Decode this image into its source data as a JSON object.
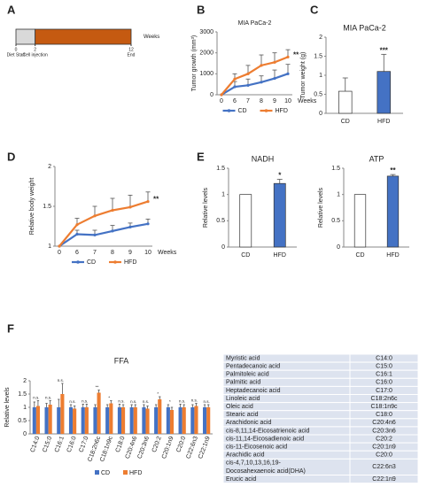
{
  "panel_labels": [
    "A",
    "B",
    "C",
    "D",
    "E",
    "F"
  ],
  "chart_data": [
    {
      "type": "timeline",
      "xlim": [
        0,
        12
      ],
      "xticks": [
        0,
        2,
        12
      ],
      "tick_notes": [
        "Diet Start",
        "Cell injection",
        "End"
      ],
      "xlabel": "Weeks",
      "segments": [
        {
          "start": 0,
          "end": 2,
          "color": "#d9d9d9"
        },
        {
          "start": 2,
          "end": 12,
          "color": "#c55a11"
        }
      ]
    },
    {
      "type": "line",
      "title": "MIA PaCa-2",
      "ylabel": "Tumor growth (mm³)",
      "xlabel": "Weeks",
      "categories": [
        "0",
        "6",
        "7",
        "8",
        "9",
        "10"
      ],
      "ylim": [
        0,
        3000
      ],
      "yticks": [
        0,
        1000,
        2000,
        3000
      ],
      "series": [
        {
          "name": "CD",
          "color": "#4472c4",
          "values": [
            0,
            380,
            450,
            600,
            780,
            1000
          ],
          "errors": [
            0,
            250,
            300,
            300,
            400,
            450
          ]
        },
        {
          "name": "HFD",
          "color": "#ed7d31",
          "values": [
            0,
            750,
            1000,
            1400,
            1550,
            1800
          ],
          "errors": [
            0,
            250,
            400,
            500,
            450,
            350
          ]
        }
      ],
      "annotations": [
        {
          "series": "HFD",
          "text": "**"
        }
      ]
    },
    {
      "type": "bar",
      "title": "MIA PaCa-2",
      "ylabel": "Tumor weight (g)",
      "categories": [
        "CD",
        "HFD"
      ],
      "values": [
        0.58,
        1.1
      ],
      "errors": [
        0.35,
        0.45
      ],
      "colors": [
        "#ffffff",
        "#4472c4"
      ],
      "ylim": [
        0,
        2
      ],
      "yticks": [
        0,
        0.5,
        1,
        1.5,
        2
      ],
      "annotations": [
        {
          "category": "HFD",
          "text": "***"
        }
      ]
    },
    {
      "type": "line",
      "ylabel": "Relative body weight",
      "xlabel": "Weeks",
      "categories": [
        "0",
        "6",
        "7",
        "8",
        "9",
        "10"
      ],
      "ylim": [
        1,
        2
      ],
      "yticks": [
        1,
        1.5,
        2
      ],
      "series": [
        {
          "name": "CD",
          "color": "#4472c4",
          "values": [
            1,
            1.15,
            1.14,
            1.19,
            1.24,
            1.28
          ],
          "errors": [
            0,
            0.05,
            0.06,
            0.07,
            0.05,
            0.06
          ]
        },
        {
          "name": "HFD",
          "color": "#ed7d31",
          "values": [
            1,
            1.27,
            1.38,
            1.45,
            1.49,
            1.56
          ],
          "errors": [
            0,
            0.08,
            0.12,
            0.15,
            0.15,
            0.12
          ]
        }
      ],
      "annotations": [
        {
          "series": "HFD",
          "text": "**"
        }
      ]
    },
    {
      "type": "bar",
      "title": "NADH",
      "ylabel": "Relative levels",
      "categories": [
        "CD",
        "HFD"
      ],
      "values": [
        1,
        1.21
      ],
      "errors": [
        0,
        0.08
      ],
      "colors": [
        "#ffffff",
        "#4472c4"
      ],
      "ylim": [
        0,
        1.5
      ],
      "yticks": [
        0,
        0.5,
        1,
        1.5
      ],
      "annotations": [
        {
          "category": "HFD",
          "text": "*"
        }
      ]
    },
    {
      "type": "bar",
      "title": "ATP",
      "ylabel": "Relative levels",
      "categories": [
        "CD",
        "HFD"
      ],
      "values": [
        1,
        1.35
      ],
      "errors": [
        0,
        0.03
      ],
      "colors": [
        "#ffffff",
        "#4472c4"
      ],
      "ylim": [
        0,
        1.5
      ],
      "yticks": [
        0,
        0.5,
        1,
        1.5
      ],
      "annotations": [
        {
          "category": "HFD",
          "text": "**"
        }
      ]
    },
    {
      "type": "grouped_bar",
      "title": "FFA",
      "ylabel": "Relative levels",
      "categories": [
        "C14:0",
        "C15:0",
        "C16:1",
        "C16:0",
        "C17:0",
        "C18:2n6c",
        "C18:1n9c",
        "C18:0",
        "C20:4n6",
        "C20:3n6",
        "C20:2",
        "C20:1n9",
        "C20:0",
        "C22:6n3",
        "C22:1n9"
      ],
      "ylim": [
        0,
        2
      ],
      "yticks": [
        0,
        0.5,
        1,
        1.5,
        2
      ],
      "series": [
        {
          "name": "CD",
          "color": "#4472c4",
          "values": [
            1,
            1,
            1,
            1,
            1,
            1,
            1,
            1,
            1,
            1,
            1,
            1,
            1,
            1,
            1
          ],
          "errors": [
            0.2,
            0.15,
            0.3,
            0.1,
            0.12,
            0.1,
            0.1,
            0.12,
            0.1,
            0.1,
            0.1,
            0.1,
            0.12,
            0.1,
            0.1
          ]
        },
        {
          "name": "HFD",
          "color": "#ed7d31",
          "values": [
            1.05,
            1.1,
            1.5,
            0.95,
            1.0,
            1.55,
            1.15,
            1.0,
            1.0,
            0.95,
            1.3,
            0.9,
            1.0,
            1.05,
            1.0
          ],
          "errors": [
            0.2,
            0.15,
            0.4,
            0.1,
            0.12,
            0.1,
            0.1,
            0.1,
            0.1,
            0.1,
            0.1,
            0.1,
            0.1,
            0.1,
            0.1
          ]
        }
      ],
      "annotations": [
        "n.s.",
        "n.s.",
        "n.s.",
        "n.s.",
        "n.s.",
        "**",
        "*",
        "n.s.",
        "n.s.",
        "n.s.",
        "*",
        "*",
        "n.s.",
        "n.s.",
        "n.s."
      ]
    }
  ],
  "table": {
    "rows": [
      [
        "Myristic acid",
        "C14:0"
      ],
      [
        "Pentadecanoic acid",
        "C15:0"
      ],
      [
        "Palmitoleic acid",
        "C16:1"
      ],
      [
        "Palmitic acid",
        "C16:0"
      ],
      [
        "Heptadecanoic acid",
        "C17:0"
      ],
      [
        "Linoleic acid",
        "C18:2n6c"
      ],
      [
        "Oleic acid",
        "C18:1n9c"
      ],
      [
        "Stearic acid",
        "C18:0"
      ],
      [
        "Arachidonic acid",
        "C20:4n6"
      ],
      [
        "cis-8,11,14-Eicosatrienoic acid",
        "C20:3n6"
      ],
      [
        "cis-11,14-Eicosadienoic acid",
        "C20:2"
      ],
      [
        "cis-11-Eicosenoic acid",
        "C20:1n9"
      ],
      [
        "Arachidic acid",
        "C20:0"
      ],
      [
        [
          "cis-4,7,10,13,16,19-",
          "Docosahexaenoic acid(DHA)"
        ],
        "C22:6n3"
      ],
      [
        "Erucic acid",
        "C22:1n9"
      ]
    ]
  }
}
